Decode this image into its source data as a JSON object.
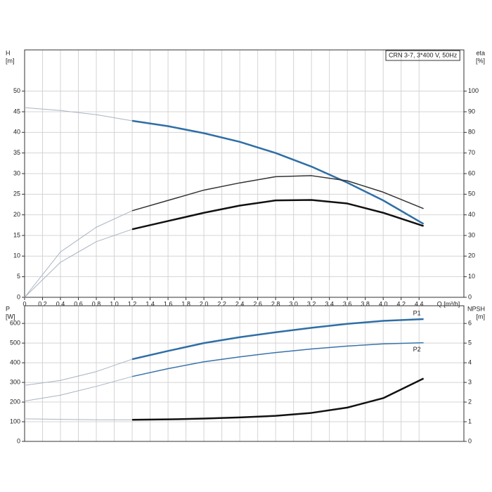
{
  "chart_data": [
    {
      "type": "line",
      "title": "CRN 3-7, 3*400 V, 50Hz",
      "ylabel": "H",
      "yunit": "[m]",
      "y2label": "eta",
      "y2unit": "[%]",
      "xlabel": "Q [m³/h]",
      "xlim": [
        0,
        4.9
      ],
      "ylim": [
        0,
        60
      ],
      "y2lim": [
        0,
        120
      ],
      "xticks": [
        0,
        0.2,
        0.4,
        0.6,
        0.8,
        {
          "value": 1,
          "label": "1.0"
        },
        1.2,
        1.4,
        1.6,
        1.8,
        {
          "value": 2,
          "label": "2.0"
        },
        2.2,
        2.4,
        2.6,
        2.8,
        {
          "value": 3,
          "label": "3.0"
        },
        3.2,
        3.4,
        3.6,
        3.8,
        {
          "value": 4,
          "label": "4.0"
        },
        4.2,
        4.4
      ],
      "yticks": [
        0,
        5,
        10,
        15,
        20,
        25,
        30,
        35,
        40,
        45,
        50
      ],
      "y2ticks": [
        0,
        10,
        20,
        30,
        40,
        50,
        60,
        70,
        80,
        90,
        100
      ],
      "grid": true,
      "thin_below_x": 1.2,
      "x": [
        0,
        0.4,
        0.8,
        1.2,
        1.6,
        2.0,
        2.4,
        2.8,
        3.2,
        3.6,
        4.0,
        4.45
      ],
      "series": [
        {
          "color": "#2f6ea5",
          "width": 2.5,
          "values": [
            46,
            45.3,
            44.3,
            42.8,
            41.5,
            39.8,
            37.7,
            35.0,
            31.7,
            27.8,
            23.5,
            17.8
          ]
        },
        {
          "color": "#333333",
          "width": 1.5,
          "axis": "y2",
          "values": [
            0,
            22,
            34,
            42,
            47,
            52,
            55.5,
            58.5,
            59,
            56.5,
            51,
            43
          ]
        },
        {
          "color": "#111111",
          "width": 2.5,
          "axis": "y2",
          "values": [
            0,
            17,
            27,
            33,
            37,
            41,
            44.5,
            47,
            47.2,
            45.5,
            41,
            34.6
          ]
        }
      ]
    },
    {
      "type": "line",
      "ylabel": "P",
      "yunit": "[W]",
      "y2label": "NPSH",
      "y2unit": "[m]",
      "xlim": [
        0,
        4.9
      ],
      "ylim": [
        0,
        690
      ],
      "y2lim": [
        0,
        6.9
      ],
      "yticks": [
        0,
        100,
        200,
        300,
        400,
        500,
        600
      ],
      "y2ticks": [
        0,
        1,
        2,
        3,
        4,
        5,
        6
      ],
      "grid": true,
      "thin_below_x": 1.2,
      "x": [
        0,
        0.4,
        0.8,
        1.2,
        1.6,
        2.0,
        2.4,
        2.8,
        3.2,
        3.6,
        4.0,
        4.45
      ],
      "series": [
        {
          "name": "P1",
          "color": "#2f6ea5",
          "width": 2.5,
          "values": [
            285,
            310,
            355,
            418,
            460,
            500,
            530,
            555,
            578,
            598,
            613,
            622
          ]
        },
        {
          "name": "P2",
          "color": "#3b73a8",
          "width": 1.5,
          "values": [
            205,
            235,
            280,
            330,
            370,
            405,
            430,
            452,
            470,
            485,
            496,
            502
          ]
        },
        {
          "color": "#111111",
          "width": 2.5,
          "axis": "y2",
          "values": [
            1.15,
            1.12,
            1.1,
            1.1,
            1.12,
            1.16,
            1.22,
            1.3,
            1.45,
            1.72,
            2.2,
            3.2
          ]
        }
      ]
    }
  ]
}
